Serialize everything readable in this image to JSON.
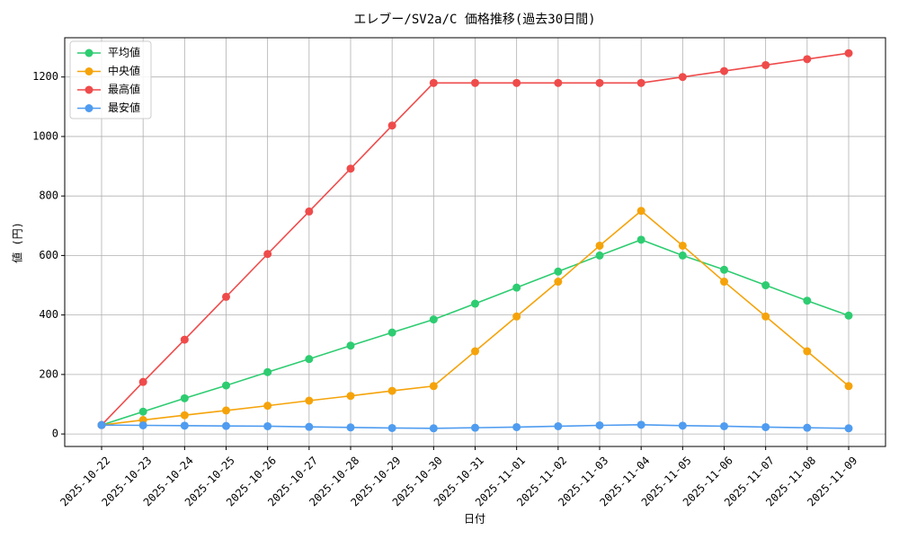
{
  "chart_data": {
    "type": "line",
    "title": "エレブー/SV2a/C 価格推移(過去30日間)",
    "x_label": "日付",
    "y_label": "値 (円)",
    "categories": [
      "2025-10-22",
      "2025-10-23",
      "2025-10-24",
      "2025-10-25",
      "2025-10-26",
      "2025-10-27",
      "2025-10-28",
      "2025-10-29",
      "2025-10-30",
      "2025-10-31",
      "2025-11-01",
      "2025-11-02",
      "2025-11-03",
      "2025-11-04",
      "2025-11-05",
      "2025-11-06",
      "2025-11-07",
      "2025-11-08",
      "2025-11-09"
    ],
    "series": [
      {
        "name": "平均値",
        "color": "#2ecc71",
        "values": [
          30,
          75,
          120,
          163,
          208,
          252,
          297,
          341,
          385,
          438,
          492,
          546,
          600,
          653,
          600,
          552,
          500,
          448,
          398
        ]
      },
      {
        "name": "中央値",
        "color": "#f5a30a",
        "values": [
          30,
          47,
          63,
          79,
          95,
          112,
          128,
          145,
          161,
          278,
          395,
          512,
          633,
          750,
          633,
          512,
          395,
          278,
          161
        ]
      },
      {
        "name": "最高値",
        "color": "#ef4b4b",
        "values": [
          30,
          175,
          317,
          461,
          605,
          748,
          892,
          1037,
          1180,
          1180,
          1180,
          1180,
          1180,
          1180,
          1200,
          1220,
          1240,
          1260,
          1280
        ]
      },
      {
        "name": "最安値",
        "color": "#4f9cf0",
        "values": [
          30,
          29,
          28,
          27,
          26,
          24,
          22,
          20,
          19,
          21,
          23,
          26,
          29,
          31,
          28,
          26,
          23,
          21,
          19
        ]
      }
    ],
    "ylim": [
      -42,
      1332
    ],
    "yticks": [
      0,
      200,
      400,
      600,
      800,
      1000,
      1200
    ],
    "grid": true,
    "legend": "upper-left"
  }
}
